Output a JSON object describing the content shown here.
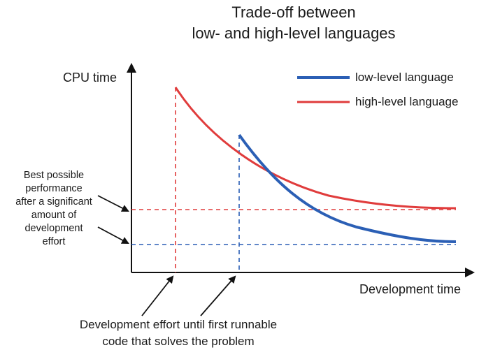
{
  "title": {
    "line1": "Trade-off between",
    "line2": "low- and high-level languages"
  },
  "axes": {
    "y_label": "CPU time",
    "x_label": "Development time"
  },
  "legend": {
    "low": "low-level language",
    "high": "high-level language"
  },
  "annotations": {
    "best_performance": [
      "Best possible",
      "performance",
      "after a significant",
      "amount of",
      "development",
      "effort"
    ],
    "first_runnable": [
      "Development effort until first runnable",
      "code that solves the problem"
    ]
  },
  "colors": {
    "low_level": "#2b5fb5",
    "high_level": "#e03c3c",
    "axis": "#111111"
  }
}
